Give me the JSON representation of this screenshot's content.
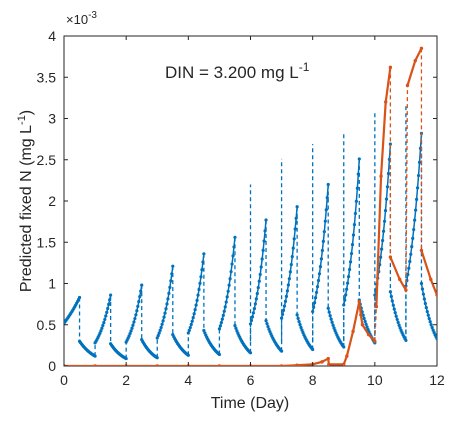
{
  "chart_data": {
    "type": "line",
    "title": "",
    "xlabel": "Time (Day)",
    "ylabel": "Predicted fixed N (mg L",
    "ylabel_superscript": "-1",
    "ylabel_suffix": ")",
    "y_exponent_base": "×10",
    "y_exponent_power": "-3",
    "annotation": {
      "text": "DIN = 3.200 mg L",
      "superscript": "-1"
    },
    "xlim": [
      0,
      12
    ],
    "ylim": [
      0,
      4
    ],
    "x_ticks": [
      0,
      2,
      4,
      6,
      8,
      10,
      12
    ],
    "x_tick_labels": [
      "0",
      "2",
      "4",
      "6",
      "8",
      "10",
      "12"
    ],
    "y_ticks": [
      0,
      0.5,
      1,
      1.5,
      2,
      2.5,
      3,
      3.5,
      4
    ],
    "y_tick_labels": [
      "0",
      "0.5",
      "1",
      "1.5",
      "2",
      "2.5",
      "3",
      "3.5",
      "4"
    ],
    "y_units_multiplier": "1e-3",
    "grid": false,
    "legend": "none",
    "series": [
      {
        "color": "#0072BD",
        "marker": "dot",
        "segments": [
          {
            "x0": 0.0,
            "y0": 0.52,
            "x1": 0.5,
            "y1": 0.83
          },
          {
            "x0": 0.5,
            "y0": 0.3,
            "x1": 1.0,
            "y1": 0.12
          },
          {
            "x0": 1.0,
            "y0": 0.28,
            "x1": 1.5,
            "y1": 0.86
          },
          {
            "x0": 1.5,
            "y0": 0.27,
            "x1": 2.0,
            "y1": 0.09
          },
          {
            "x0": 2.0,
            "y0": 0.29,
            "x1": 2.5,
            "y1": 0.98
          },
          {
            "x0": 2.5,
            "y0": 0.32,
            "x1": 3.0,
            "y1": 0.1
          },
          {
            "x0": 3.0,
            "y0": 0.34,
            "x1": 3.5,
            "y1": 1.21
          },
          {
            "x0": 3.5,
            "y0": 0.38,
            "x1": 4.0,
            "y1": 0.13
          },
          {
            "x0": 4.0,
            "y0": 0.4,
            "x1": 4.5,
            "y1": 1.36
          },
          {
            "x0": 4.5,
            "y0": 0.43,
            "x1": 5.0,
            "y1": 0.14
          },
          {
            "x0": 5.0,
            "y0": 0.45,
            "x1": 5.5,
            "y1": 1.56
          },
          {
            "x0": 5.5,
            "y0": 0.49,
            "x1": 6.0,
            "y1": 0.16
          },
          {
            "x0": 6.0,
            "y0": 0.51,
            "x1": 6.5,
            "y1": 1.77
          },
          {
            "x0": 6.5,
            "y0": 0.55,
            "x1": 7.0,
            "y1": 0.18
          },
          {
            "x0": 7.0,
            "y0": 0.58,
            "x1": 7.5,
            "y1": 1.93
          },
          {
            "x0": 7.5,
            "y0": 0.62,
            "x1": 8.0,
            "y1": 0.2
          },
          {
            "x0": 8.0,
            "y0": 0.66,
            "x1": 8.5,
            "y1": 2.2
          },
          {
            "x0": 8.5,
            "y0": 0.7,
            "x1": 9.0,
            "y1": 0.23
          },
          {
            "x0": 9.0,
            "y0": 0.74,
            "x1": 9.5,
            "y1": 2.51
          },
          {
            "x0": 9.5,
            "y0": 0.8,
            "x1": 10.0,
            "y1": 0.28
          },
          {
            "x0": 10.0,
            "y0": 0.86,
            "x1": 10.5,
            "y1": 2.69
          },
          {
            "x0": 10.5,
            "y0": 0.9,
            "x1": 11.0,
            "y1": 0.31
          },
          {
            "x0": 11.0,
            "y0": 0.97,
            "x1": 11.5,
            "y1": 2.82
          },
          {
            "x0": 11.5,
            "y0": 1.0,
            "x1": 12.0,
            "y1": 0.33
          }
        ],
        "peaks": [
          {
            "x": 6.0,
            "y": 2.2
          },
          {
            "x": 7.0,
            "y": 2.51
          },
          {
            "x": 8.0,
            "y": 2.69
          },
          {
            "x": 9.0,
            "y": 2.82
          },
          {
            "x": 10.0,
            "y": 3.08
          },
          {
            "x": 11.0,
            "y": 3.16
          }
        ]
      },
      {
        "color": "#D95319",
        "marker": "dot",
        "points": [
          [
            0.0,
            0.0
          ],
          [
            1.0,
            0.0
          ],
          [
            2.0,
            0.0
          ],
          [
            3.0,
            0.0
          ],
          [
            4.0,
            0.0
          ],
          [
            5.0,
            0.0
          ],
          [
            6.0,
            0.0
          ],
          [
            7.0,
            0.0
          ],
          [
            7.5,
            0.01
          ],
          [
            8.0,
            0.02
          ],
          [
            8.3,
            0.05
          ],
          [
            8.5,
            0.09
          ],
          [
            8.52,
            0.02
          ],
          [
            9.0,
            0.02
          ],
          [
            9.1,
            0.12
          ],
          [
            9.3,
            0.42
          ],
          [
            9.5,
            0.78
          ],
          [
            9.55,
            0.62
          ],
          [
            9.6,
            0.5
          ],
          [
            9.8,
            0.38
          ],
          [
            10.0,
            0.3
          ],
          [
            10.05,
            0.72
          ],
          [
            10.2,
            2.3
          ],
          [
            10.35,
            3.2
          ],
          [
            10.5,
            3.62
          ],
          [
            10.5,
            1.32
          ],
          [
            10.8,
            1.05
          ],
          [
            11.0,
            0.92
          ],
          [
            11.05,
            3.4
          ],
          [
            11.3,
            3.7
          ],
          [
            11.5,
            3.85
          ],
          [
            11.5,
            1.4
          ],
          [
            11.8,
            1.05
          ],
          [
            12.0,
            0.86
          ]
        ]
      }
    ]
  }
}
